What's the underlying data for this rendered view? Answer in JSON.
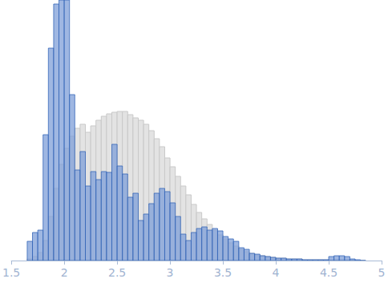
{
  "chart_data": {
    "type": "histogram",
    "bins": [
      1.65,
      1.7,
      1.75,
      1.8,
      1.85,
      1.9,
      1.95,
      2.0,
      2.05,
      2.1,
      2.15,
      2.2,
      2.25,
      2.3,
      2.35,
      2.4,
      2.45,
      2.5,
      2.55,
      2.6,
      2.65,
      2.7,
      2.75,
      2.8,
      2.85,
      2.9,
      2.95,
      3.0,
      3.05,
      3.1,
      3.15,
      3.2,
      3.25,
      3.3,
      3.35,
      3.4,
      3.45,
      3.5,
      3.55,
      3.6,
      3.65,
      3.7,
      3.75,
      3.8,
      3.85,
      3.9,
      3.95,
      4.0,
      4.05,
      4.1,
      4.15,
      4.2,
      4.25,
      4.3,
      4.35,
      4.4,
      4.45,
      4.5,
      4.55,
      4.6,
      4.65,
      4.7,
      4.75,
      4.8,
      4.85
    ],
    "series": [
      {
        "color": "#e3e3e3",
        "values": [
          2,
          5,
          10,
          25,
          55,
          90,
          120,
          140,
          155,
          165,
          170,
          160,
          168,
          175,
          180,
          183,
          185,
          186,
          186,
          182,
          178,
          175,
          170,
          162,
          152,
          142,
          128,
          117,
          105,
          93,
          82,
          70,
          60,
          52,
          45,
          38,
          32,
          27,
          22,
          18,
          14,
          11,
          9,
          7,
          6,
          5,
          4,
          3,
          3,
          2,
          2,
          2,
          1,
          1,
          1,
          1,
          1,
          1,
          1,
          1,
          1,
          0,
          0,
          0
        ]
      },
      {
        "color": "#7f9fd8",
        "values": [
          24,
          35,
          38,
          157,
          265,
          320,
          325,
          325,
          207,
          113,
          136,
          93,
          111,
          101,
          111,
          110,
          145,
          118,
          108,
          79,
          84,
          50,
          58,
          71,
          84,
          90,
          86,
          72,
          55,
          33,
          25,
          35,
          40,
          42,
          38,
          40,
          37,
          30,
          27,
          24,
          16,
          14,
          9,
          8,
          6,
          5,
          4,
          3,
          3,
          2,
          2,
          2,
          1,
          1,
          1,
          1,
          1,
          5,
          6,
          6,
          5,
          2,
          1,
          0
        ]
      }
    ],
    "xlim": [
      1.5,
      5
    ],
    "xticks": [
      1.5,
      2,
      2.5,
      3,
      3.5,
      4,
      4.5,
      5
    ],
    "ylim": [
      0,
      325
    ],
    "tick_labels": "x",
    "grid": false
  }
}
